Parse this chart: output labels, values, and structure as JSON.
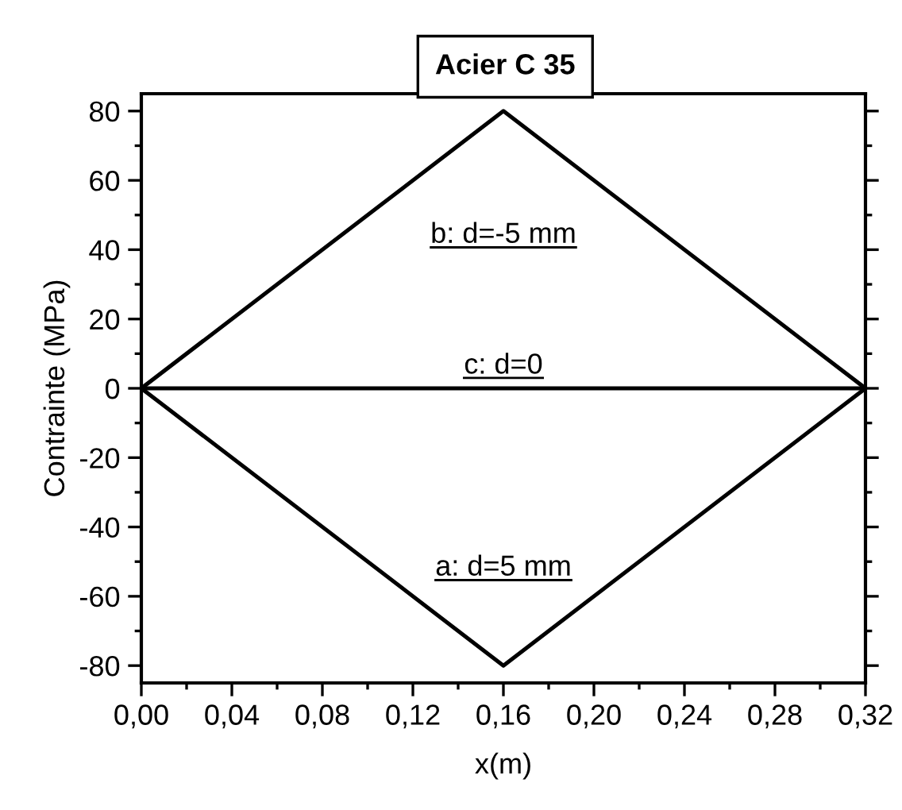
{
  "chart_data": {
    "type": "line",
    "title": "Acier C 35",
    "xlabel": "x(m)",
    "ylabel": "Contrainte (MPa)",
    "series": [
      {
        "name": "b: d=-5 mm",
        "color": "#000000",
        "x": [
          0,
          0.16,
          0.32
        ],
        "values": [
          0,
          80,
          0
        ]
      },
      {
        "name": "c: d=0",
        "color": "#000000",
        "x": [
          0,
          0.32
        ],
        "values": [
          0,
          0
        ]
      },
      {
        "name": "a: d=5 mm",
        "color": "#000000",
        "x": [
          0,
          0.16,
          0.32
        ],
        "values": [
          0,
          -80,
          0
        ]
      }
    ],
    "xlim": [
      0,
      0.32
    ],
    "ylim": [
      -85,
      85
    ],
    "xticks": [
      {
        "value": 0,
        "label": "0,00"
      },
      {
        "value": 0.04,
        "label": "0,04"
      },
      {
        "value": 0.08,
        "label": "0,08"
      },
      {
        "value": 0.12,
        "label": "0,12"
      },
      {
        "value": 0.16,
        "label": "0,16"
      },
      {
        "value": 0.2,
        "label": "0,20"
      },
      {
        "value": 0.24,
        "label": "0,24"
      },
      {
        "value": 0.28,
        "label": "0,28"
      },
      {
        "value": 0.32,
        "label": "0,32"
      }
    ],
    "yticks": [
      -80,
      -60,
      -40,
      -20,
      0,
      20,
      40,
      60,
      80
    ],
    "grid": false,
    "legend": false,
    "marker": "none",
    "line_style": "solid"
  }
}
